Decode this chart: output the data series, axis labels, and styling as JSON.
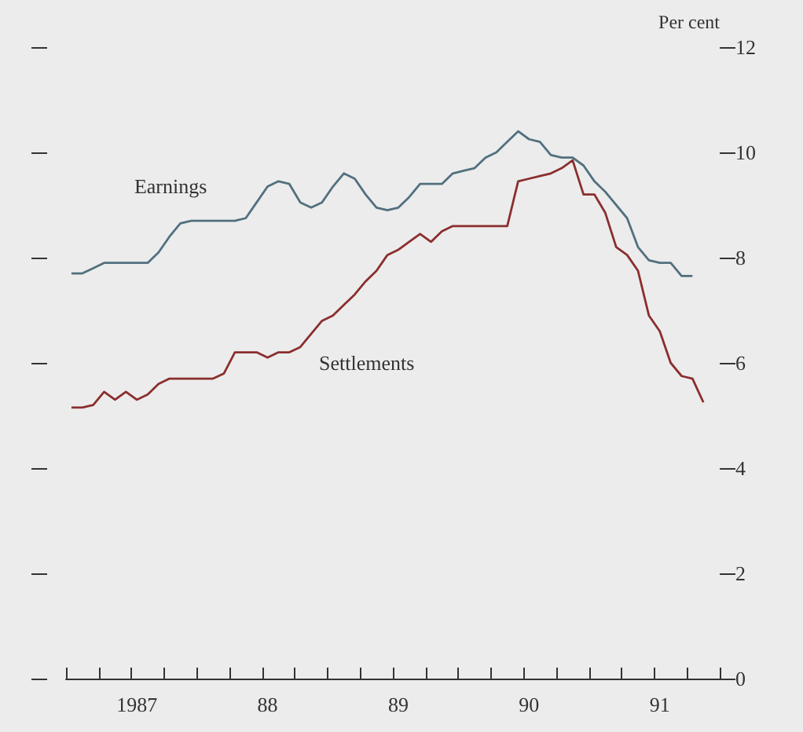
{
  "chart_data": {
    "type": "line",
    "ylabel": "Per cent",
    "ylim": [
      0,
      12
    ],
    "yticks": [
      0,
      2,
      4,
      6,
      8,
      10,
      12
    ],
    "categories": [
      null,
      null,
      null,
      null,
      null,
      null,
      "1987",
      null,
      null,
      null,
      null,
      null,
      null,
      null,
      null,
      null,
      null,
      null,
      "88",
      null,
      null,
      null,
      null,
      null,
      null,
      null,
      null,
      null,
      null,
      null,
      "89",
      null,
      null,
      null,
      null,
      null,
      null,
      null,
      null,
      null,
      null,
      null,
      "90",
      null,
      null,
      null,
      null,
      null,
      null,
      null,
      null,
      null,
      null,
      null,
      "91",
      null,
      null,
      null,
      null,
      null
    ],
    "grid": false,
    "marker": "none",
    "line_style": "solid",
    "annotations": [
      "Earnings",
      "Settlements"
    ],
    "series": [
      {
        "color": "#52707e",
        "values": [
          7.7,
          7.7,
          7.8,
          7.9,
          7.9,
          7.9,
          7.9,
          7.9,
          8.1,
          8.4,
          8.65,
          8.7,
          8.7,
          8.7,
          8.7,
          8.7,
          8.75,
          9.05,
          9.35,
          9.45,
          9.4,
          9.05,
          8.95,
          9.05,
          9.35,
          9.6,
          9.5,
          9.2,
          8.95,
          8.9,
          8.95,
          9.15,
          9.4,
          9.4,
          9.4,
          9.6,
          9.65,
          9.7,
          9.9,
          10.0,
          10.2,
          10.4,
          10.25,
          10.2,
          9.95,
          9.9,
          9.9,
          9.75,
          9.45,
          9.25,
          9.0,
          8.75,
          8.2,
          7.95,
          7.9,
          7.9,
          7.65,
          7.65,
          null,
          null
        ]
      },
      {
        "color": "#8b2e2e",
        "values": [
          5.15,
          5.15,
          5.2,
          5.45,
          5.3,
          5.45,
          5.3,
          5.4,
          5.6,
          5.7,
          5.7,
          5.7,
          5.7,
          5.7,
          5.8,
          6.2,
          6.2,
          6.2,
          6.1,
          6.2,
          6.2,
          6.3,
          6.55,
          6.8,
          6.9,
          7.1,
          7.3,
          7.55,
          7.75,
          8.05,
          8.15,
          8.3,
          8.45,
          8.3,
          8.5,
          8.6,
          8.6,
          8.6,
          8.6,
          8.6,
          8.6,
          9.45,
          9.5,
          9.55,
          9.6,
          9.7,
          9.85,
          9.2,
          9.2,
          8.85,
          8.2,
          8.05,
          7.75,
          6.9,
          6.6,
          6.0,
          5.75,
          5.7,
          5.25,
          null
        ]
      }
    ]
  }
}
